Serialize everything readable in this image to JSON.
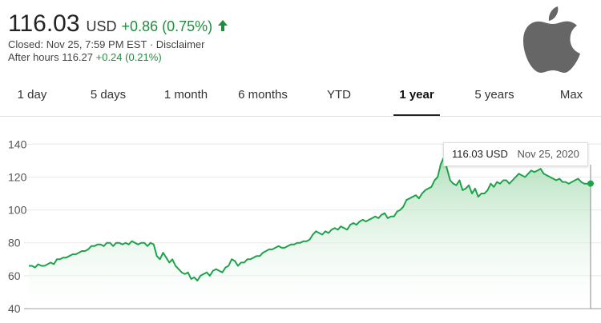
{
  "quote": {
    "price": "116.03",
    "currency": "USD",
    "change": "+0.86 (0.75%)",
    "closed_text": "Closed: Nov 25, 7:59 PM EST",
    "separator": "·",
    "disclaimer": "Disclaimer",
    "after_hours_label": "After hours 116.27",
    "after_hours_change": "+0.24 (0.21%)"
  },
  "colors": {
    "up": "#1e8e3e",
    "line": "#1fa34a",
    "fill_top": "#a8dcb4"
  },
  "icons": {
    "trend": "arrow-up-icon",
    "logo": "apple-logo"
  },
  "tabs": [
    {
      "label": "1 day"
    },
    {
      "label": "5 days"
    },
    {
      "label": "1 month"
    },
    {
      "label": "6 months"
    },
    {
      "label": "YTD"
    },
    {
      "label": "1 year",
      "active": true
    },
    {
      "label": "5 years"
    },
    {
      "label": "Max"
    }
  ],
  "tooltip": {
    "price": "116.03 USD",
    "date": "Nov 25, 2020"
  },
  "chart_data": {
    "type": "area",
    "ylim": [
      40,
      145
    ],
    "yticks": [
      "140",
      "120",
      "100",
      "80",
      "60",
      "40"
    ],
    "grid": true,
    "series": [
      {
        "values": [
          66,
          66,
          65,
          67,
          66,
          66,
          67,
          68,
          67,
          70,
          70,
          71,
          71,
          72,
          73,
          73,
          74,
          75,
          75,
          76,
          78,
          78,
          79,
          79,
          78,
          80,
          80,
          78,
          80,
          80,
          79,
          80,
          79,
          81,
          80,
          79,
          80,
          80,
          78,
          80,
          79,
          72,
          70,
          74,
          71,
          68,
          70,
          66,
          64,
          62,
          61,
          62,
          58,
          59,
          57,
          60,
          61,
          62,
          60,
          63,
          64,
          63,
          62,
          65,
          66,
          70,
          69,
          66,
          68,
          68,
          70,
          70,
          71,
          72,
          72,
          74,
          75,
          76,
          76,
          77,
          78,
          77,
          77,
          78,
          79,
          79,
          80,
          80,
          81,
          81,
          82,
          85,
          87,
          86,
          85,
          87,
          86,
          88,
          89,
          88,
          90,
          89,
          88,
          91,
          92,
          91,
          93,
          94,
          93,
          94,
          95,
          96,
          95,
          97,
          98,
          95,
          96,
          96,
          99,
          100,
          102,
          106,
          107,
          108,
          109,
          107,
          110,
          112,
          113,
          114,
          118,
          120,
          128,
          132,
          125,
          118,
          116,
          115,
          118,
          112,
          113,
          115,
          110,
          113,
          108,
          110,
          110,
          112,
          116,
          114,
          117,
          116,
          118,
          118,
          116,
          118,
          120,
          122,
          121,
          120,
          122,
          124,
          123,
          124,
          125,
          122,
          121,
          120,
          119,
          118,
          119,
          117,
          117,
          116,
          117,
          118,
          119,
          117,
          116,
          116,
          116.03
        ]
      }
    ]
  }
}
